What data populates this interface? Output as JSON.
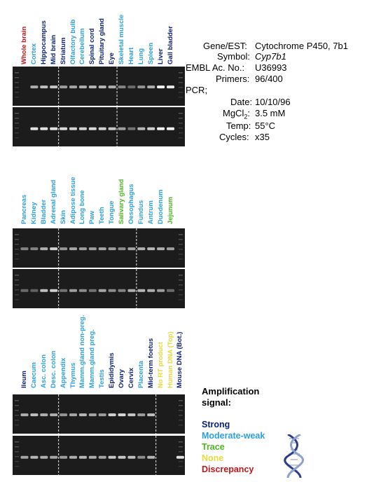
{
  "colors": {
    "strong": "#0a1f7a",
    "moderate_weak": "#2aa0e0",
    "trace": "#4cb81c",
    "none": "#e8d838",
    "discrepancy": "#c0171b"
  },
  "panels": [
    {
      "lanes": [
        {
          "label": "Whole brain",
          "signal": "discrepancy",
          "band": [
            0,
            0
          ]
        },
        {
          "label": "Cortex",
          "signal": "moderate_weak",
          "band": [
            0.55,
            0.85
          ]
        },
        {
          "label": "Hippocampus",
          "signal": "strong",
          "band": [
            0.65,
            0.85
          ]
        },
        {
          "label": "Mid brain",
          "signal": "strong",
          "band": [
            0.7,
            0.85
          ]
        },
        {
          "label": "Striatum",
          "signal": "strong",
          "band": [
            0.45,
            0.8
          ]
        },
        {
          "label": "Olfactory bulb",
          "signal": "moderate_weak",
          "band": [
            0.5,
            0.75
          ]
        },
        {
          "label": "Cerebellum",
          "signal": "moderate_weak",
          "band": [
            0.55,
            0.75
          ]
        },
        {
          "label": "Spinal cord",
          "signal": "strong",
          "band": [
            0.6,
            0.8
          ]
        },
        {
          "label": "Pituitary gland",
          "signal": "strong",
          "band": [
            0.6,
            0.75
          ]
        },
        {
          "label": "Eye",
          "signal": "strong",
          "band": [
            0.55,
            0.7
          ]
        },
        {
          "label": "Skeletal muscle",
          "signal": "moderate_weak",
          "band": [
            0.3,
            0.45
          ]
        },
        {
          "label": "Heart",
          "signal": "moderate_weak",
          "band": [
            0.15,
            0.2
          ]
        },
        {
          "label": "Lung",
          "signal": "moderate_weak",
          "band": [
            0.4,
            0.6
          ]
        },
        {
          "label": "Spleen",
          "signal": "moderate_weak",
          "band": [
            0.55,
            0.75
          ]
        },
        {
          "label": "Liver",
          "signal": "strong",
          "band": [
            0.95,
            0.95
          ]
        },
        {
          "label": "Gall bladder",
          "signal": "strong",
          "band": [
            0.9,
            0.95
          ]
        }
      ]
    },
    {
      "lanes": [
        {
          "label": "Pancreas",
          "signal": "moderate_weak",
          "band": [
            0.3,
            0.15
          ]
        },
        {
          "label": "Kidney",
          "signal": "moderate_weak",
          "band": [
            0.3,
            0.1
          ]
        },
        {
          "label": "Bladder",
          "signal": "moderate_weak",
          "band": [
            0.55,
            0.65
          ]
        },
        {
          "label": "Adrenal gland",
          "signal": "moderate_weak",
          "band": [
            0.75,
            0.75
          ]
        },
        {
          "label": "Skin",
          "signal": "moderate_weak",
          "band": [
            0.4,
            0.2
          ]
        },
        {
          "label": "Adipose tissue",
          "signal": "moderate_weak",
          "band": [
            0.5,
            0.45
          ]
        },
        {
          "label": "Long bone",
          "signal": "moderate_weak",
          "band": [
            0.45,
            0.35
          ]
        },
        {
          "label": "Paw",
          "signal": "moderate_weak",
          "band": [
            0.45,
            0.2
          ]
        },
        {
          "label": "Teeth",
          "signal": "moderate_weak",
          "band": [
            0.5,
            0.5
          ]
        },
        {
          "label": "Tongue",
          "signal": "moderate_weak",
          "band": [
            0.45,
            0.35
          ]
        },
        {
          "label": "Salivary gland",
          "signal": "trace",
          "band": [
            0.35,
            0.3
          ]
        },
        {
          "label": "Oesophagus",
          "signal": "moderate_weak",
          "band": [
            0.5,
            0.55
          ]
        },
        {
          "label": "Fundus",
          "signal": "moderate_weak",
          "band": [
            0.55,
            0.6
          ]
        },
        {
          "label": "Antrum",
          "signal": "moderate_weak",
          "band": [
            0.6,
            0.55
          ]
        },
        {
          "label": "Duodenum",
          "signal": "moderate_weak",
          "band": [
            0.55,
            0.45
          ]
        },
        {
          "label": "Jejunum",
          "signal": "trace",
          "band": [
            0.45,
            0.15
          ]
        }
      ]
    },
    {
      "lanes": [
        {
          "label": "Ileum",
          "signal": "strong",
          "band": [
            0.55,
            0.5
          ]
        },
        {
          "label": "Caecum",
          "signal": "moderate_weak",
          "band": [
            0.65,
            0.6
          ]
        },
        {
          "label": "Asc. colon",
          "signal": "moderate_weak",
          "band": [
            0.55,
            0.55
          ]
        },
        {
          "label": "Desc. colon",
          "signal": "moderate_weak",
          "band": [
            0.55,
            0.5
          ]
        },
        {
          "label": "Appendix",
          "signal": "moderate_weak",
          "band": [
            0.4,
            0.45
          ]
        },
        {
          "label": "Thymus",
          "signal": "moderate_weak",
          "band": [
            0.5,
            0.55
          ]
        },
        {
          "label": "Mamm.gland non-preg.",
          "signal": "moderate_weak",
          "band": [
            0.6,
            0.6
          ]
        },
        {
          "label": "Mamm.gland preg.",
          "signal": "moderate_weak",
          "band": [
            0.5,
            0.55
          ]
        },
        {
          "label": "Testis",
          "signal": "moderate_weak",
          "band": [
            0.45,
            0.5
          ]
        },
        {
          "label": "Epididymis",
          "signal": "strong",
          "band": [
            0.75,
            0.7
          ]
        },
        {
          "label": "Ovary",
          "signal": "strong",
          "band": [
            0.8,
            0.7
          ]
        },
        {
          "label": "Cervix",
          "signal": "strong",
          "band": [
            0.7,
            0.65
          ]
        },
        {
          "label": "Placenta",
          "signal": "moderate_weak",
          "band": [
            0.45,
            0.35
          ]
        },
        {
          "label": "Mid-term foetus",
          "signal": "strong",
          "band": [
            0.65,
            0.6
          ]
        },
        {
          "label": "No RT product",
          "signal": "none",
          "band": [
            0,
            0
          ]
        },
        {
          "label": "Human DNA (Top)",
          "signal": "none",
          "band": [
            0,
            0
          ]
        },
        {
          "label": "Mouse DNA (Bot.)",
          "signal": "strong",
          "band": [
            0,
            0.85
          ]
        }
      ]
    }
  ],
  "info": {
    "rows": [
      {
        "key": "Gene/EST:",
        "value": "Cytochrome P450, 7b1"
      },
      {
        "key": "Symbol:",
        "value": "Cyp7b1"
      },
      {
        "key": "EMBL Ac. No.:",
        "value": "U36993"
      },
      {
        "key": "Primers:",
        "value": "96/400"
      },
      {
        "key": "PCR;",
        "value": ""
      },
      {
        "key": "Date:",
        "value": "10/10/96"
      },
      {
        "key": "MgCl",
        "value": "3.5 mM"
      },
      {
        "key": "Temp:",
        "value": "55"
      },
      {
        "key": "Cycles:",
        "value": "x35"
      }
    ],
    "mgcl_sub": "2",
    "temp_unit": "°C",
    "colon": ":"
  },
  "legend": {
    "title_line1": "Amplification",
    "title_line2": "signal:",
    "items": [
      {
        "label": "Strong",
        "color": "#0a1f7a"
      },
      {
        "label": "Moderate-weak",
        "color": "#2aa0e0"
      },
      {
        "label": "Trace",
        "color": "#4cb81c"
      },
      {
        "label": "None",
        "color": "#e8d838"
      },
      {
        "label": "Discrepancy",
        "color": "#c0171b"
      }
    ]
  }
}
